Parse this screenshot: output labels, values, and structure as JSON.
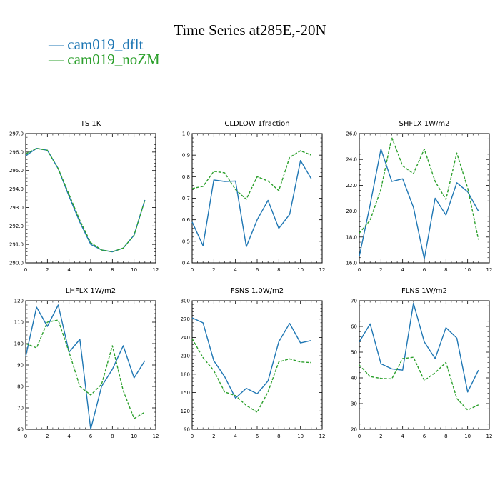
{
  "title": "Time Series at285E,-20N",
  "legend": [
    {
      "name": "cam019_dflt",
      "color": "#1f77b4",
      "dash": "solid"
    },
    {
      "name": "cam019_noZM",
      "color": "#2ca02c",
      "dash": "dashed"
    }
  ],
  "chart_data": [
    {
      "type": "line",
      "title": "TS  1K",
      "xlim": [
        0,
        12
      ],
      "xticks": [
        0,
        2,
        4,
        6,
        8,
        10,
        12
      ],
      "ylim": [
        290,
        297
      ],
      "yticks": [
        "290.0",
        "291.0",
        "292.0",
        "293.0",
        "294.0",
        "295.0",
        "296.0",
        "297.0"
      ],
      "x": [
        0,
        1,
        2,
        3,
        4,
        5,
        6,
        7,
        8,
        9,
        10,
        11
      ],
      "series": [
        {
          "name": "cam019_dflt",
          "values": [
            295.8,
            296.2,
            296.1,
            295.1,
            293.6,
            292.2,
            291.0,
            290.7,
            290.6,
            290.8,
            291.5,
            293.4
          ]
        },
        {
          "name": "cam019_noZM",
          "values": [
            295.9,
            296.2,
            296.1,
            295.1,
            293.7,
            292.3,
            291.1,
            290.7,
            290.6,
            290.8,
            291.5,
            293.4
          ]
        }
      ]
    },
    {
      "type": "line",
      "title": "CLDLOW  1fraction",
      "xlim": [
        0,
        12
      ],
      "xticks": [
        0,
        2,
        4,
        6,
        8,
        10,
        12
      ],
      "ylim": [
        0.4,
        1.0
      ],
      "yticks": [
        "0.4",
        "0.5",
        "0.6",
        "0.7",
        "0.8",
        "0.9",
        "1.0"
      ],
      "x": [
        0,
        1,
        2,
        3,
        4,
        5,
        6,
        7,
        8,
        9,
        10,
        11
      ],
      "series": [
        {
          "name": "cam019_dflt",
          "values": [
            0.59,
            0.48,
            0.785,
            0.778,
            0.78,
            0.475,
            0.6,
            0.69,
            0.56,
            0.625,
            0.875,
            0.79
          ]
        },
        {
          "name": "cam019_noZM",
          "values": [
            0.745,
            0.755,
            0.825,
            0.818,
            0.74,
            0.695,
            0.8,
            0.78,
            0.735,
            0.89,
            0.92,
            0.9
          ]
        }
      ]
    },
    {
      "type": "line",
      "title": "SHFLX  1W/m2",
      "xlim": [
        0,
        12
      ],
      "xticks": [
        0,
        2,
        4,
        6,
        8,
        10,
        12
      ],
      "ylim": [
        16,
        26
      ],
      "yticks": [
        "16.0",
        "18.0",
        "20.0",
        "22.0",
        "24.0",
        "26.0"
      ],
      "x": [
        0,
        1,
        2,
        3,
        4,
        5,
        6,
        7,
        8,
        9,
        10,
        11
      ],
      "series": [
        {
          "name": "cam019_dflt",
          "values": [
            16.5,
            20.5,
            24.8,
            22.3,
            22.5,
            20.3,
            16.3,
            21.0,
            19.7,
            22.2,
            21.5,
            20.0
          ]
        },
        {
          "name": "cam019_noZM",
          "values": [
            18.3,
            19.3,
            21.7,
            25.7,
            23.5,
            22.9,
            24.8,
            22.3,
            20.9,
            24.5,
            21.8,
            17.8
          ]
        }
      ]
    },
    {
      "type": "line",
      "title": "LHFLX  1W/m2",
      "xlim": [
        0,
        12
      ],
      "xticks": [
        0,
        2,
        4,
        6,
        8,
        10,
        12
      ],
      "ylim": [
        60,
        120
      ],
      "yticks": [
        "60",
        "70",
        "80",
        "90",
        "100",
        "110",
        "120"
      ],
      "x": [
        0,
        1,
        2,
        3,
        4,
        5,
        6,
        7,
        8,
        9,
        10,
        11
      ],
      "series": [
        {
          "name": "cam019_dflt",
          "values": [
            94,
            117,
            108,
            118,
            96,
            102,
            60,
            80,
            88,
            99,
            84,
            92
          ]
        },
        {
          "name": "cam019_noZM",
          "values": [
            100,
            98,
            110,
            111,
            96,
            80,
            76,
            81,
            99,
            78,
            65,
            68
          ]
        }
      ]
    },
    {
      "type": "line",
      "title": "FSNS  1.0W/m2",
      "xlim": [
        0,
        12
      ],
      "xticks": [
        0,
        2,
        4,
        6,
        8,
        10,
        12
      ],
      "ylim": [
        90,
        300
      ],
      "yticks": [
        "90",
        "120",
        "150",
        "180",
        "210",
        "240",
        "270",
        "300"
      ],
      "x": [
        0,
        1,
        2,
        3,
        4,
        5,
        6,
        7,
        8,
        9,
        10,
        11
      ],
      "series": [
        {
          "name": "cam019_dflt",
          "values": [
            272,
            264,
            202,
            176,
            141,
            157,
            148,
            169,
            233,
            263,
            231,
            235
          ]
        },
        {
          "name": "cam019_noZM",
          "values": [
            238,
            207,
            186,
            151,
            145,
            129,
            118,
            151,
            200,
            205,
            200,
            199
          ]
        }
      ]
    },
    {
      "type": "line",
      "title": "FLNS  1W/m2",
      "xlim": [
        0,
        12
      ],
      "xticks": [
        0,
        2,
        4,
        6,
        8,
        10,
        12
      ],
      "ylim": [
        20,
        70
      ],
      "yticks": [
        "20",
        "30",
        "40",
        "50",
        "60",
        "70"
      ],
      "x": [
        0,
        1,
        2,
        3,
        4,
        5,
        6,
        7,
        8,
        9,
        10,
        11
      ],
      "series": [
        {
          "name": "cam019_dflt",
          "values": [
            54,
            61,
            45.5,
            43.5,
            43,
            69,
            54,
            47.5,
            59.5,
            55.5,
            34.5,
            43
          ]
        },
        {
          "name": "cam019_noZM",
          "values": [
            45,
            40.5,
            39.8,
            39.6,
            47.5,
            48,
            39,
            42,
            46,
            32,
            27.5,
            29.5
          ]
        }
      ]
    }
  ]
}
